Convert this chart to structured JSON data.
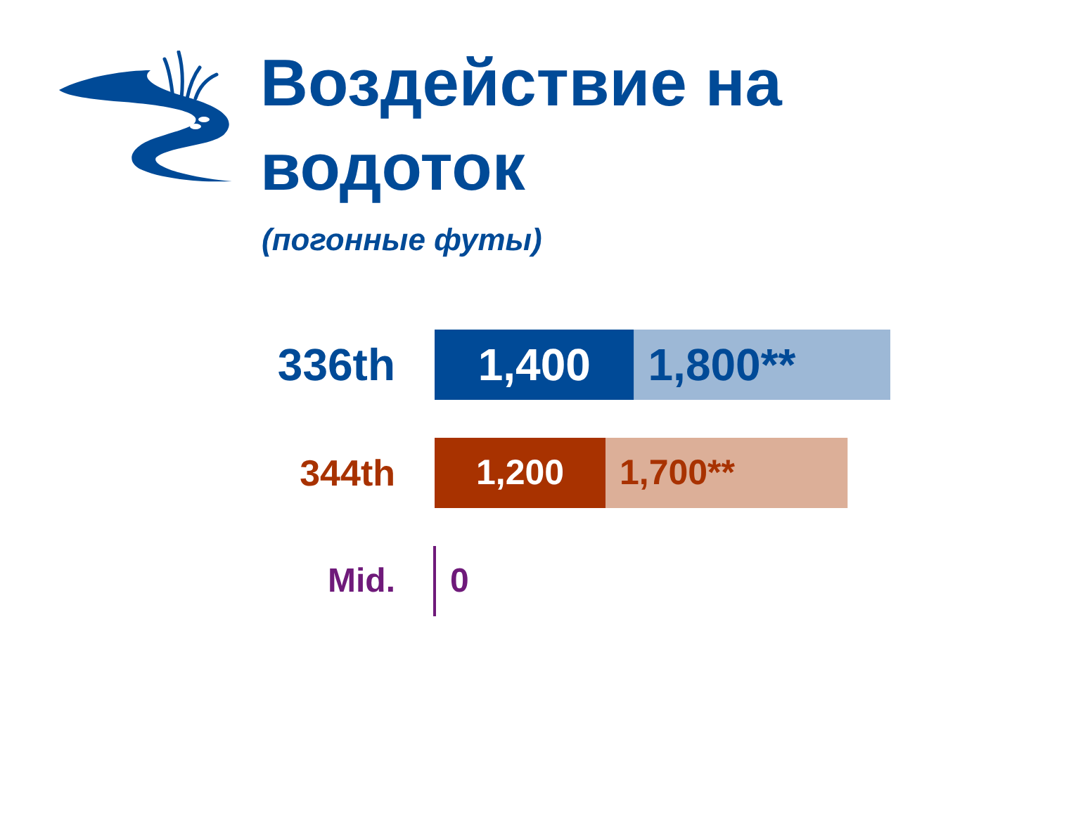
{
  "chart_data": {
    "type": "bar",
    "orientation": "horizontal",
    "stacked": true,
    "title": "Воздействие на водоток",
    "subtitle": "(погонные футы)",
    "categories": [
      "336th",
      "344th",
      "Mid."
    ],
    "series": [
      {
        "values": [
          1400,
          1200,
          0
        ],
        "colors": [
          "#004a97",
          "#a83200",
          "#6f1a7a"
        ],
        "value_labels": [
          "1,400",
          "1,200",
          "0"
        ]
      },
      {
        "values": [
          1800,
          1700,
          null
        ],
        "colors": [
          "#9db8d6",
          "#dcaf98",
          null
        ],
        "value_labels": [
          "1,800**",
          "1,700**",
          null
        ]
      }
    ],
    "xlim": [
      0,
      3200
    ],
    "tick_labels": "y"
  }
}
